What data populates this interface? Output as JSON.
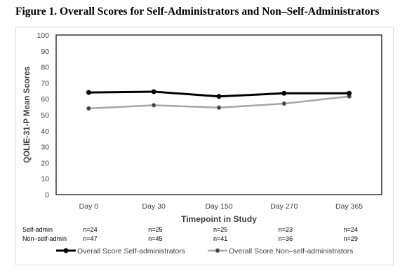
{
  "figure": {
    "title": "Figure 1. Overall Scores for Self-Administrators and Non–Self-Administrators"
  },
  "chart_data": {
    "type": "line",
    "categories": [
      "Day 0",
      "Day 30",
      "Day 150",
      "Day 270",
      "Day 365"
    ],
    "series": [
      {
        "name": "Overall Score Self-administrators",
        "values": [
          64,
          64.5,
          61.5,
          63.5,
          63.5
        ],
        "color": "#000000"
      },
      {
        "name": "Overall Score Non–self-administrators",
        "values": [
          54,
          56,
          54.5,
          57,
          61.5
        ],
        "color": "#a6a6a6"
      }
    ],
    "xlabel": "Timepoint in Study",
    "ylabel": "QOLIE-31-P Mean Scores",
    "ylim": [
      0,
      100
    ],
    "yticks": [
      0,
      10,
      20,
      30,
      40,
      50,
      60,
      70,
      80,
      90,
      100
    ],
    "grid": false,
    "legend_position": "bottom",
    "sample_table": [
      {
        "label": "Self-admin",
        "values": [
          "n=24",
          "n=25",
          "n=25",
          "n=23",
          "n=24"
        ]
      },
      {
        "label": "Non–self-admin",
        "values": [
          "n=47",
          "n=45",
          "n=41",
          "n=36",
          "n=29"
        ]
      }
    ]
  }
}
